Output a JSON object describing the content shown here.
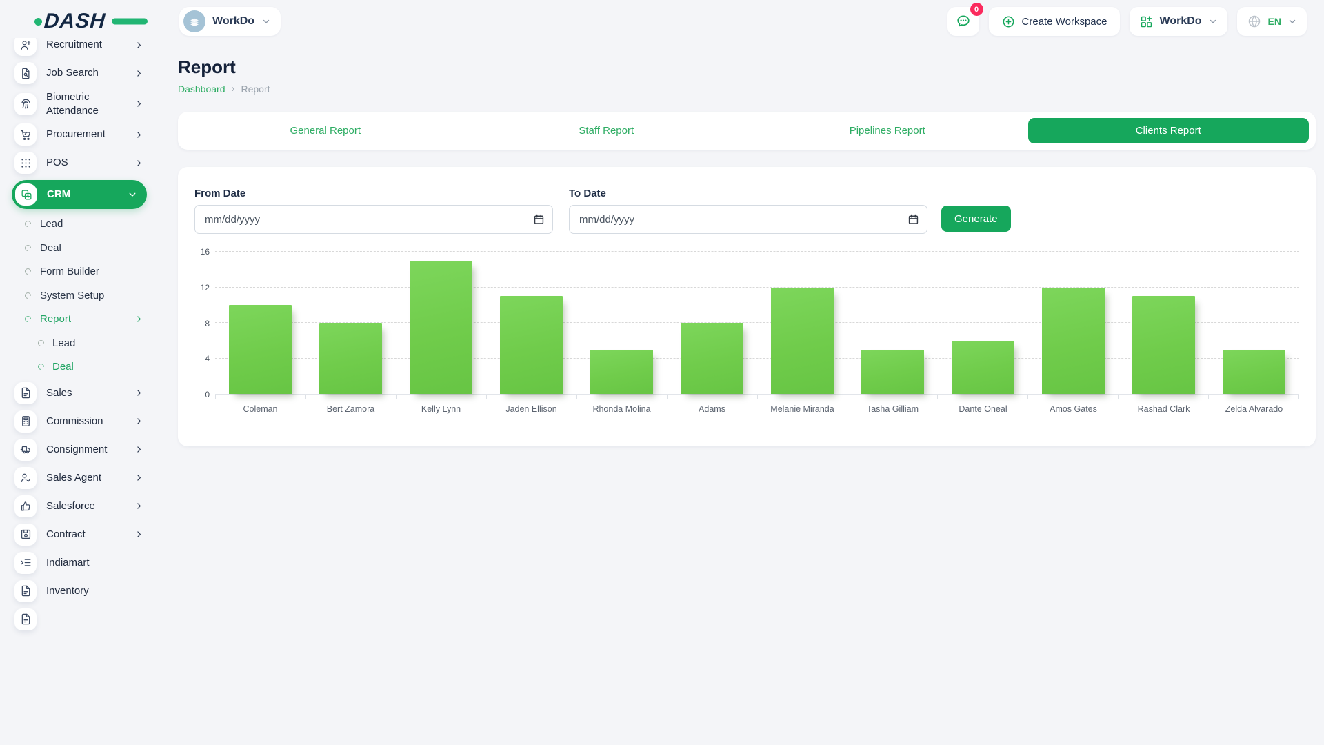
{
  "header": {
    "logo": "DASH",
    "workspace": {
      "name": "WorkDo"
    },
    "messages": {
      "badge": "0"
    },
    "create_workspace_label": "Create Workspace",
    "account_menu_label": "WorkDo",
    "language": "EN"
  },
  "sidebar": {
    "menu": [
      {
        "label": "Recruitment",
        "icon": "recruitment-icon",
        "expand": "right",
        "first": true
      },
      {
        "label": "Job Search",
        "icon": "job-search-icon",
        "expand": "right"
      },
      {
        "label": "Biometric Attendance",
        "icon": "biometric-attendance-icon",
        "expand": "right"
      },
      {
        "label": "Procurement",
        "icon": "procurement-icon",
        "expand": "right"
      },
      {
        "label": "POS",
        "icon": "pos-icon",
        "expand": "right"
      },
      {
        "label": "CRM",
        "icon": "crm-icon",
        "expand": "down",
        "active": true
      },
      {
        "label": "Lead",
        "level": 1
      },
      {
        "label": "Deal",
        "level": 1
      },
      {
        "label": "Form Builder",
        "level": 1
      },
      {
        "label": "System Setup",
        "level": 1
      },
      {
        "label": "Report",
        "level": 1,
        "active": true,
        "expand": "right"
      },
      {
        "label": "Lead",
        "level": 2
      },
      {
        "label": "Deal",
        "level": 2,
        "active": true
      },
      {
        "label": "Sales",
        "icon": "sales-icon",
        "expand": "right"
      },
      {
        "label": "Commission",
        "icon": "commission-icon",
        "expand": "right"
      },
      {
        "label": "Consignment",
        "icon": "consignment-icon",
        "expand": "right"
      },
      {
        "label": "Sales Agent",
        "icon": "sales-agent-icon",
        "expand": "right"
      },
      {
        "label": "Salesforce",
        "icon": "salesforce-icon",
        "expand": "right"
      },
      {
        "label": "Contract",
        "icon": "contract-icon",
        "expand": "right"
      },
      {
        "label": "Indiamart",
        "icon": "indiamart-icon"
      },
      {
        "label": "Inventory",
        "icon": "inventory-icon"
      },
      {
        "label": "",
        "icon": "document-icon",
        "partial": true
      }
    ]
  },
  "page": {
    "title": "Report",
    "breadcrumb": [
      "Dashboard",
      "Report"
    ]
  },
  "tabs": [
    {
      "label": "General Report"
    },
    {
      "label": "Staff Report"
    },
    {
      "label": "Pipelines Report"
    },
    {
      "label": "Clients Report",
      "active": true
    }
  ],
  "filters": {
    "from_date_label": "From Date",
    "to_date_label": "To Date",
    "date_placeholder": "mm/dd/yyyy",
    "generate_label": "Generate"
  },
  "chart_data": {
    "type": "bar",
    "title": "Clients Report",
    "categories": [
      "Coleman",
      "Bert Zamora",
      "Kelly Lynn",
      "Jaden Ellison",
      "Rhonda Molina",
      "Adams",
      "Melanie Miranda",
      "Tasha Gilliam",
      "Dante Oneal",
      "Amos Gates",
      "Rashad Clark",
      "Zelda Alvarado"
    ],
    "values": [
      10,
      8,
      15,
      11,
      5,
      8,
      12,
      5,
      6,
      12,
      11,
      5
    ],
    "xlabel": "",
    "ylabel": "",
    "ylim": [
      0,
      16
    ],
    "yticks": [
      0,
      4,
      8,
      12,
      16
    ],
    "grid": "horizontal-dashed",
    "legend": "none",
    "bar_color": "#72ce4f"
  },
  "colors": {
    "brand_green": "#16a75c",
    "link_green": "#2fad64",
    "bar_green": "#72ce4f",
    "badge_red": "#fb2a5d",
    "dark_navy": "#132743"
  }
}
